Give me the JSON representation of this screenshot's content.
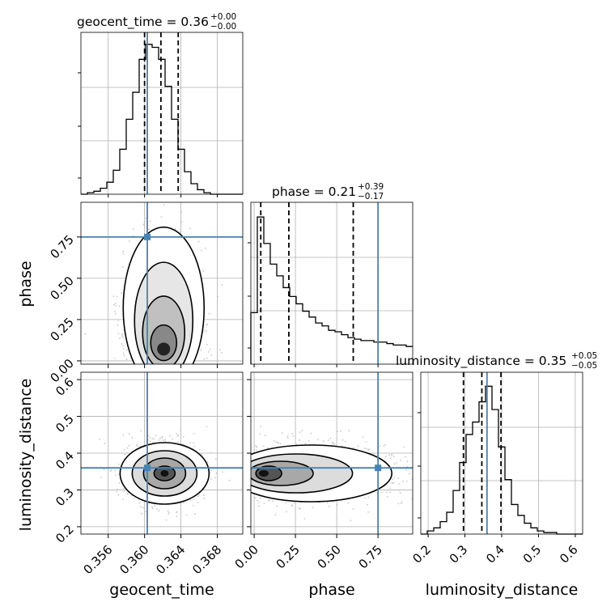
{
  "chart_data": {
    "type": "corner",
    "parameters": [
      "geocent_time",
      "phase",
      "luminosity_distance"
    ],
    "injected_values": {
      "geocent_time": 0.3603,
      "phase": 0.75,
      "luminosity_distance": 0.36
    },
    "colors": {
      "truth": "#4682b4",
      "hist": "#000000",
      "grid": "#b0b0b0",
      "scatter": "#c8c8c8"
    },
    "grid": true,
    "panels": {
      "geocent_time": {
        "title": "geocent_time = 0.36",
        "title_plus": "+0.00",
        "title_minus": "−0.00",
        "xlim": [
          0.353,
          0.3708
        ],
        "xticks": [
          0.356,
          0.36,
          0.364,
          0.368
        ],
        "xtick_labels": [
          "0.356",
          "0.360",
          "0.364",
          "0.368"
        ],
        "quantiles": [
          0.36,
          0.3618,
          0.3637
        ],
        "hist_edges_start": 0.353,
        "hist_bin_width": 0.000712,
        "hist_counts": [
          0,
          1,
          2,
          4,
          8,
          16,
          30,
          50,
          68,
          90,
          100,
          98,
          90,
          72,
          50,
          30,
          15,
          7,
          3,
          1,
          0,
          0,
          0,
          0,
          0
        ],
        "hist_ymax": 108
      },
      "phase": {
        "title": "phase = 0.21",
        "title_plus": "+0.39",
        "title_minus": "−0.17",
        "xlim": [
          -0.02,
          0.96
        ],
        "xticks": [
          0.0,
          0.25,
          0.5,
          0.75
        ],
        "xtick_labels": [
          "0.00",
          "0.25",
          "0.50",
          "0.75"
        ],
        "yticks": [
          0.0,
          0.25,
          0.5,
          0.75
        ],
        "ytick_labels": [
          "0.00",
          "0.25",
          "0.50",
          "0.75"
        ],
        "quantiles": [
          0.04,
          0.21,
          0.6
        ],
        "hist_edges_start": -0.02,
        "hist_bin_width": 0.0392,
        "hist_counts": [
          35,
          100,
          82,
          68,
          60,
          52,
          46,
          41,
          36,
          32,
          28,
          26,
          23,
          22,
          20,
          18,
          17,
          16,
          16,
          15,
          15,
          14,
          13,
          13,
          12
        ],
        "hist_ymax": 110
      },
      "luminosity_distance": {
        "title": "luminosity_distance = 0.35",
        "title_plus": "+0.05",
        "title_minus": "−0.05",
        "xlim": [
          0.18,
          0.62
        ],
        "xticks": [
          0.2,
          0.3,
          0.4,
          0.5,
          0.6
        ],
        "xtick_labels": [
          "0.2",
          "0.3",
          "0.4",
          "0.5",
          "0.6"
        ],
        "yticks": [
          0.2,
          0.3,
          0.4,
          0.5,
          0.6
        ],
        "ytick_labels": [
          "0.2",
          "0.3",
          "0.4",
          "0.5",
          "0.6"
        ],
        "quantiles": [
          0.296,
          0.346,
          0.398
        ],
        "hist_edges_start": 0.18,
        "hist_bin_width": 0.0176,
        "hist_counts": [
          0,
          2,
          4,
          8,
          14,
          28,
          46,
          64,
          72,
          85,
          95,
          80,
          56,
          35,
          19,
          12,
          7,
          4,
          2,
          1,
          1,
          0,
          0,
          0,
          0
        ],
        "hist_ymax": 104
      }
    },
    "joint_densities": [
      {
        "x": "geocent_time",
        "y": "phase",
        "peak": [
          0.3621,
          0.05
        ],
        "note": "mass concentrated at low phase, elongated upward"
      },
      {
        "x": "geocent_time",
        "y": "luminosity_distance",
        "peak": [
          0.3622,
          0.345
        ]
      },
      {
        "x": "phase",
        "y": "luminosity_distance",
        "peak": [
          0.04,
          0.345
        ]
      }
    ]
  }
}
